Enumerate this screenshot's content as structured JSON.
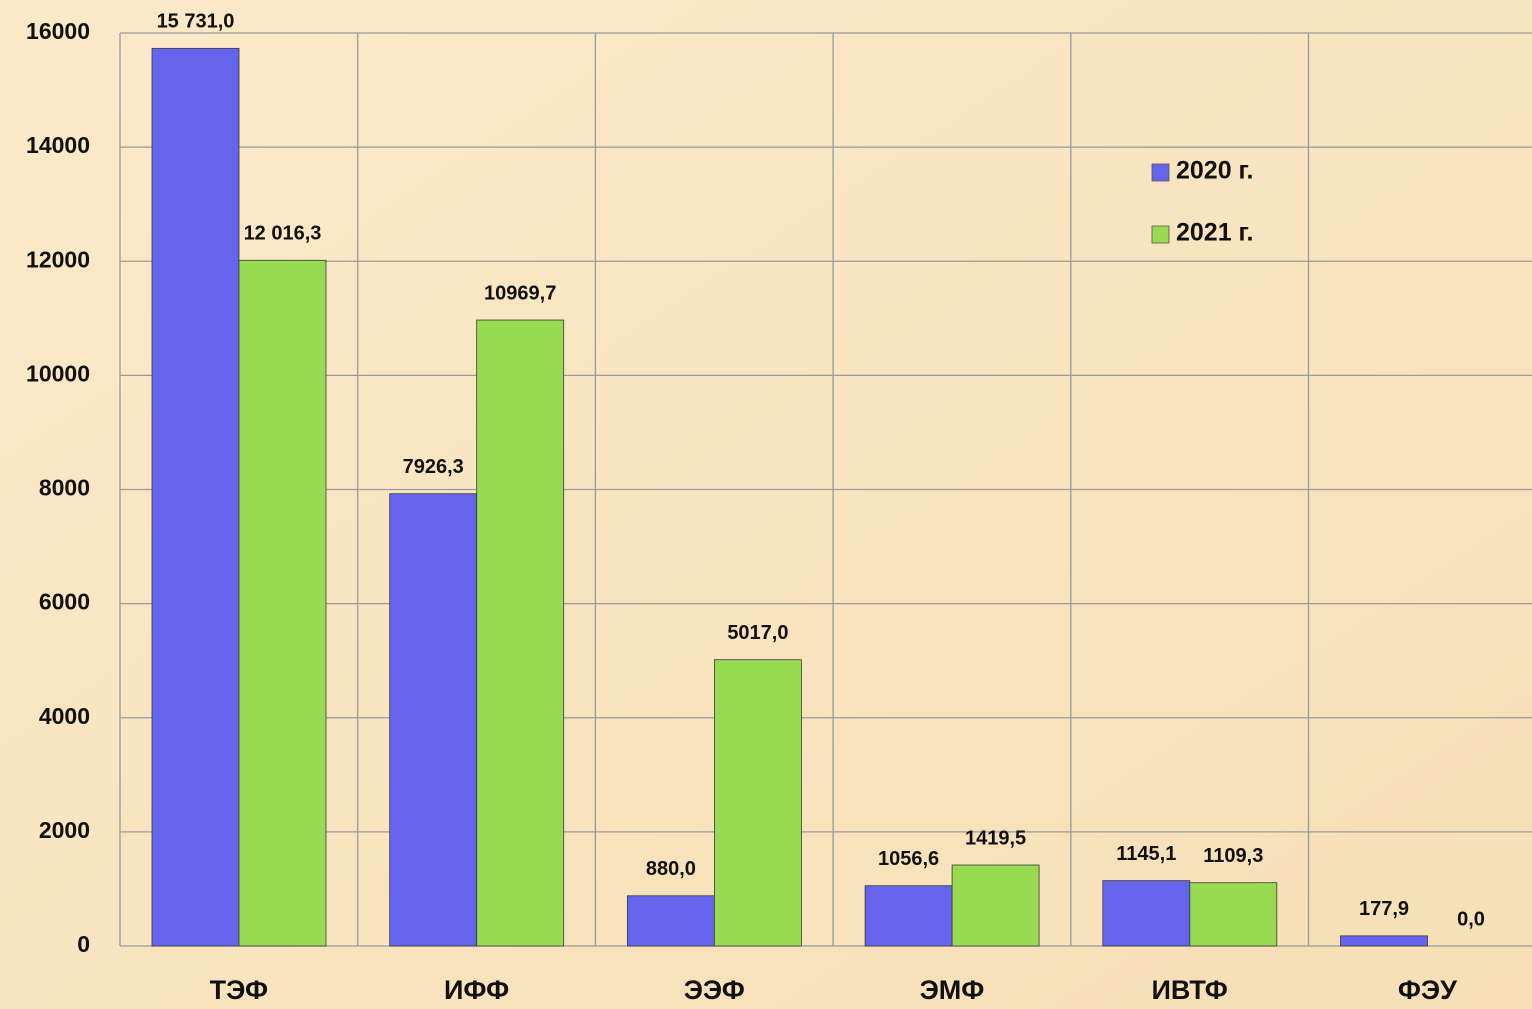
{
  "chart_data": {
    "type": "bar",
    "categories": [
      "ТЭФ",
      "ИФФ",
      "ЭЭФ",
      "ЭМФ",
      "ИВТФ",
      "ФЭУ"
    ],
    "series": [
      {
        "name": "2020 г.",
        "color": "#6464ec",
        "values": [
          15731.0,
          7926.3,
          880.0,
          1056.6,
          1145.1,
          177.9
        ],
        "value_labels": [
          "15 731,0",
          "7926,3",
          "880,0",
          "1056,6",
          "1145,1",
          "177,9"
        ]
      },
      {
        "name": "2021 г.",
        "color": "#98da52",
        "values": [
          12016.3,
          10969.7,
          5017.0,
          1419.5,
          1109.3,
          0.0
        ],
        "value_labels": [
          "12 016,3",
          "10969,7",
          "5017,0",
          "1419,5",
          "1109,3",
          "0,0"
        ]
      }
    ],
    "ylim": [
      0,
      16000
    ],
    "yticks": [
      0,
      2000,
      4000,
      6000,
      8000,
      10000,
      12000,
      14000,
      16000
    ],
    "grid": true
  }
}
